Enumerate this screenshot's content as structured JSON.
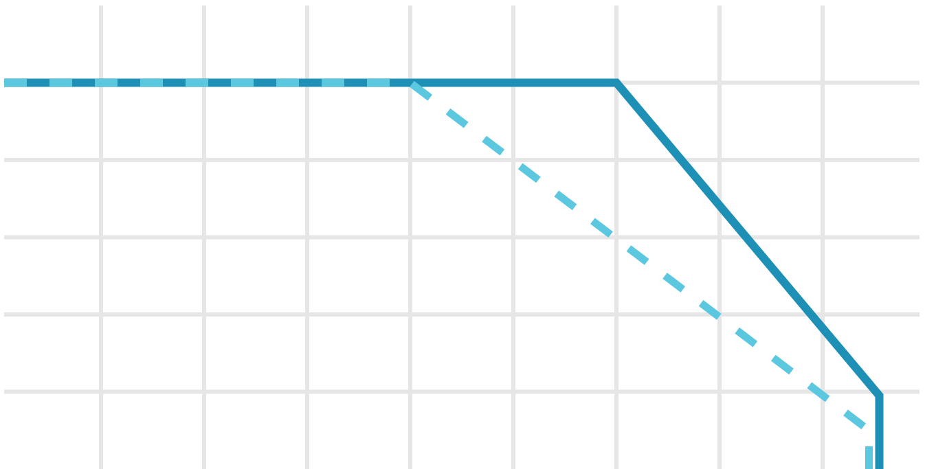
{
  "chart_data": {
    "type": "line",
    "title": "",
    "xlabel": "",
    "ylabel": "",
    "grid": true,
    "legend": "none",
    "x_range": [
      0,
      9
    ],
    "y_range": [
      0,
      6
    ],
    "x_gridlines": [
      1,
      2,
      3,
      4,
      5,
      6,
      7,
      8
    ],
    "y_gridlines": [
      1,
      2,
      3,
      4,
      5
    ],
    "series": [
      {
        "style": "solid",
        "color": "#1e90b5",
        "points": [
          [
            0,
            5
          ],
          [
            6,
            5
          ],
          [
            8.55,
            0.95
          ],
          [
            8.55,
            0
          ]
        ]
      },
      {
        "style": "dashed",
        "color": "#5bc8df",
        "points": [
          [
            0,
            5
          ],
          [
            4,
            5
          ],
          [
            8.45,
            0.5
          ],
          [
            8.45,
            0
          ]
        ]
      }
    ]
  },
  "colors": {
    "grid": "#e6e6e6",
    "background": "#ffffff"
  }
}
